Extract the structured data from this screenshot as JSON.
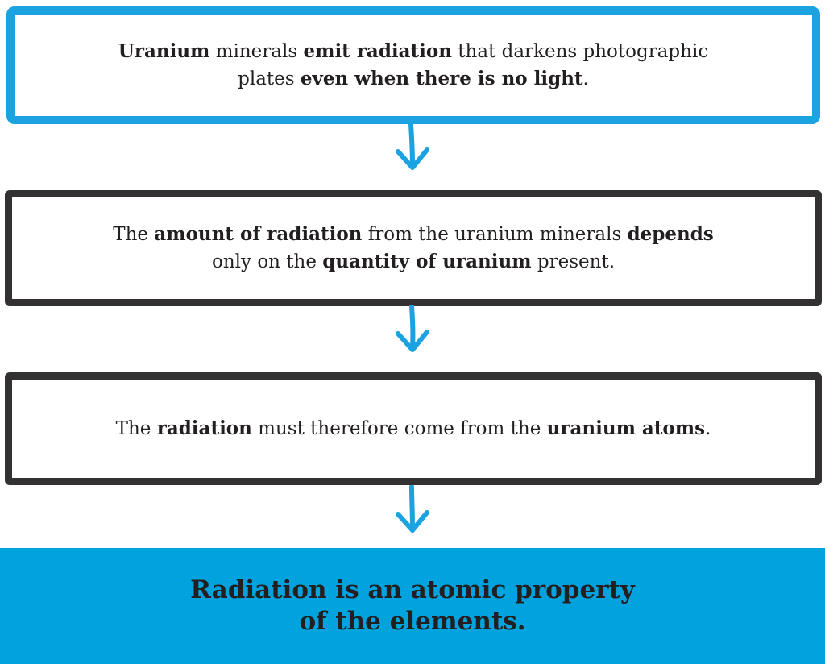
{
  "colors": {
    "accent_blue": "#1aa3e0",
    "box_dark": "#333132",
    "conclusion_bg": "#00a3dd",
    "text": "#231f20"
  },
  "steps": [
    {
      "line1": [
        {
          "text": "Uranium",
          "bold": true
        },
        {
          "text": " minerals ",
          "bold": false
        },
        {
          "text": "emit radiation",
          "bold": true
        },
        {
          "text": " that darkens photographic",
          "bold": false
        }
      ],
      "line2": [
        {
          "text": "plates ",
          "bold": false
        },
        {
          "text": "even when there is no light",
          "bold": true
        },
        {
          "text": ".",
          "bold": false
        }
      ]
    },
    {
      "line1": [
        {
          "text": "The ",
          "bold": false
        },
        {
          "text": "amount of radiation",
          "bold": true
        },
        {
          "text": " from the uranium minerals ",
          "bold": false
        },
        {
          "text": "depends",
          "bold": true
        }
      ],
      "line2": [
        {
          "text": "only on the ",
          "bold": false
        },
        {
          "text": "quantity of uranium",
          "bold": true
        },
        {
          "text": " present.",
          "bold": false
        }
      ]
    },
    {
      "line1": [
        {
          "text": "The ",
          "bold": false
        },
        {
          "text": "radiation",
          "bold": true
        },
        {
          "text": " must therefore come from the ",
          "bold": false
        },
        {
          "text": "uranium atoms",
          "bold": true
        },
        {
          "text": ".",
          "bold": false
        }
      ],
      "line2": []
    }
  ],
  "conclusion": {
    "line1": "Radiation is an atomic property",
    "line2": "of the elements."
  },
  "arrow_icon": "down-arrow-icon"
}
